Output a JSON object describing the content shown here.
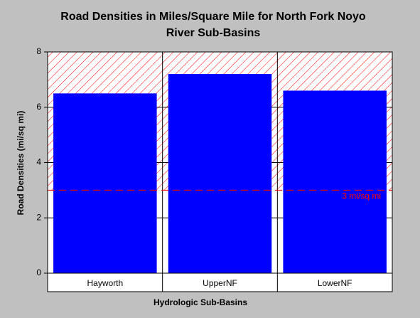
{
  "chart_data": {
    "type": "bar",
    "title": "Road Densities in Miles/Square Mile for North Fork Noyo River Sub-Basins",
    "x_label": "Hydrologic Sub-Basins",
    "y_label": "Road Densities (mi/sq mi)",
    "categories": [
      "Hayworth",
      "UpperNF",
      "LowerNF"
    ],
    "values": [
      6.5,
      7.2,
      6.6
    ],
    "color": "#0000ff",
    "ylim": [
      0,
      8
    ],
    "yticks": [
      0,
      2,
      4,
      6,
      8
    ],
    "grid": true,
    "threshold": {
      "value": 3,
      "label": "3 mi/sq mi",
      "color": "#ff0000"
    }
  }
}
